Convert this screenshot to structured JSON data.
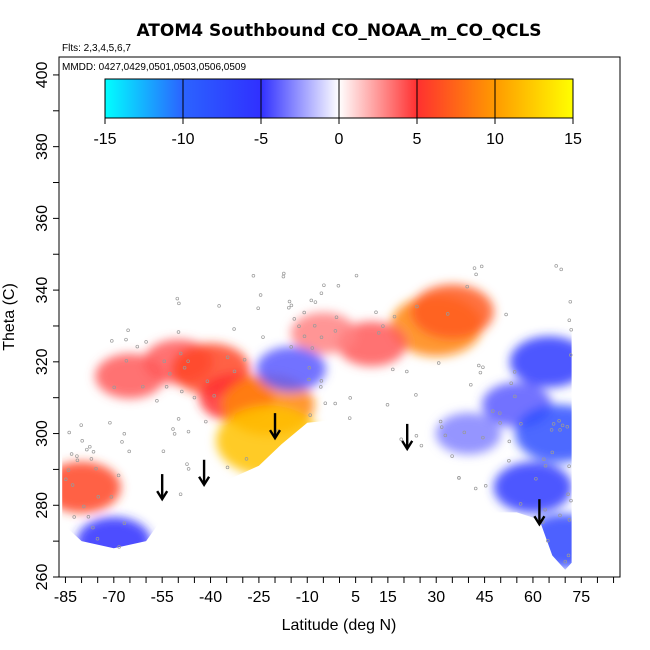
{
  "chart_data": {
    "type": "heatmap",
    "title": "ATOM4 Southbound CO_NOAA_m_CO_QCLS",
    "flights_note": "Flts: 2,3,4,5,6,7",
    "dates_note": "MMDD: 0427,0429,0501,0503,0506,0509",
    "xlabel": "Latitude (deg N)",
    "ylabel": "Theta (C)",
    "xlim": [
      -87,
      87
    ],
    "ylim": [
      260,
      405
    ],
    "x_ticks": [
      -85,
      -70,
      -55,
      -40,
      -25,
      -10,
      5,
      15,
      30,
      45,
      60,
      75
    ],
    "x_tick_labels": [
      "-85",
      "-70",
      "-55",
      "-40",
      "-25",
      "-10",
      "5",
      "15",
      "30",
      "45",
      "60",
      "75"
    ],
    "y_ticks": [
      260,
      280,
      300,
      320,
      340,
      360,
      380,
      400
    ],
    "y_tick_labels": [
      "260",
      "280",
      "300",
      "320",
      "340",
      "360",
      "380",
      "400"
    ],
    "colorbar": {
      "range": [
        -15,
        15
      ],
      "ticks": [
        -15,
        -10,
        -5,
        0,
        5,
        10,
        15
      ],
      "tick_labels": [
        "-15",
        "-10",
        "-5",
        "0",
        "5",
        "10",
        "15"
      ],
      "colors": [
        "#00ffff",
        "#2b63ff",
        "#3030ff",
        "#ffffff",
        "#ff3030",
        "#ff9a00",
        "#ffff00"
      ]
    },
    "field_envelope": {
      "lat": [
        -86,
        -80,
        -70,
        -60,
        -52,
        -45,
        -35,
        -25,
        -18,
        -10,
        0,
        10,
        20,
        30,
        40,
        47,
        55,
        62,
        66,
        70,
        72
      ],
      "theta_min": [
        275,
        270,
        268,
        270,
        280,
        283,
        287,
        291,
        297,
        303,
        304,
        302,
        297,
        291,
        285,
        278,
        278,
        276,
        266,
        262,
        264
      ],
      "theta_max": [
        318,
        322,
        328,
        336,
        340,
        343,
        344,
        345,
        345,
        346,
        346,
        347,
        348,
        349,
        349,
        349,
        350,
        353,
        357,
        359,
        338
      ]
    },
    "anomaly_regions": [
      {
        "lat": -65,
        "theta": 316,
        "value": 4
      },
      {
        "lat": -50,
        "theta": 320,
        "value": 4
      },
      {
        "lat": -40,
        "theta": 318,
        "value": 6
      },
      {
        "lat": -32,
        "theta": 310,
        "value": 5
      },
      {
        "lat": -22,
        "theta": 308,
        "value": 9
      },
      {
        "lat": -22,
        "theta": 298,
        "value": 12
      },
      {
        "lat": -80,
        "theta": 285,
        "value": 6
      },
      {
        "lat": 30,
        "theta": 330,
        "value": 9
      },
      {
        "lat": 35,
        "theta": 334,
        "value": 7
      },
      {
        "lat": 10,
        "theta": 325,
        "value": 4
      },
      {
        "lat": -5,
        "theta": 328,
        "value": 3
      },
      {
        "lat": 55,
        "theta": 308,
        "value": -4
      },
      {
        "lat": 65,
        "theta": 320,
        "value": -6
      },
      {
        "lat": 68,
        "theta": 300,
        "value": -8
      },
      {
        "lat": 60,
        "theta": 285,
        "value": -6
      },
      {
        "lat": 40,
        "theta": 300,
        "value": -3
      },
      {
        "lat": 70,
        "theta": 270,
        "value": -7
      },
      {
        "lat": -15,
        "theta": 318,
        "value": -4
      },
      {
        "lat": -70,
        "theta": 270,
        "value": -5
      }
    ],
    "arrows": [
      {
        "lat": -55,
        "theta": 282
      },
      {
        "lat": -42,
        "theta": 286
      },
      {
        "lat": -20,
        "theta": 299
      },
      {
        "lat": 21,
        "theta": 296
      },
      {
        "lat": 62,
        "theta": 275
      }
    ]
  }
}
